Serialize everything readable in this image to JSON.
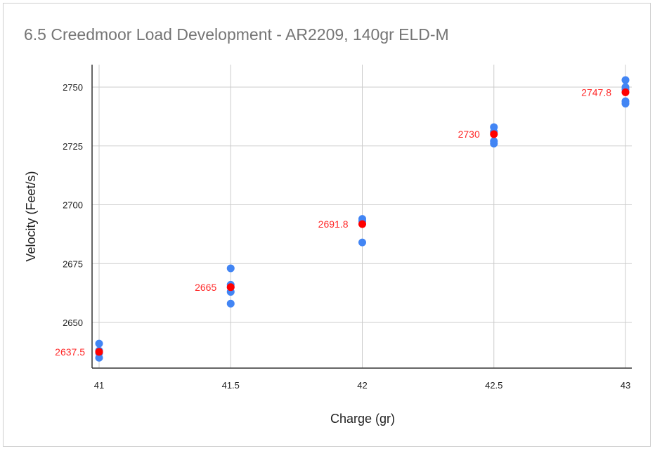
{
  "chart_data": {
    "type": "scatter",
    "title": "6.5 Creedmoor Load Development - AR2209, 140gr ELD-M",
    "xlabel": "Charge (gr)",
    "ylabel": "Velocity (Feet/s)",
    "xlim": [
      41,
      43
    ],
    "ylim": [
      2630,
      2760
    ],
    "xticks": [
      41,
      41.5,
      42,
      42.5,
      43
    ],
    "xtick_labels": [
      "41",
      "41.5",
      "42",
      "42.5",
      "43"
    ],
    "yticks": [
      2650,
      2675,
      2700,
      2725,
      2750
    ],
    "ytick_labels": [
      "2650",
      "2675",
      "2700",
      "2725",
      "2750"
    ],
    "grid": true,
    "legend": "none",
    "series": [
      {
        "color": "#4285f4",
        "points": [
          [
            41,
            2641
          ],
          [
            41,
            2638
          ],
          [
            41,
            2635
          ],
          [
            41,
            2637
          ],
          [
            41.5,
            2673
          ],
          [
            41.5,
            2666
          ],
          [
            41.5,
            2663
          ],
          [
            41.5,
            2665
          ],
          [
            41.5,
            2658
          ],
          [
            42,
            2694
          ],
          [
            42,
            2693
          ],
          [
            42,
            2684
          ],
          [
            42.5,
            2733
          ],
          [
            42.5,
            2731
          ],
          [
            42.5,
            2727
          ],
          [
            42.5,
            2726
          ],
          [
            43,
            2753
          ],
          [
            43,
            2750
          ],
          [
            43,
            2749
          ],
          [
            43,
            2744
          ],
          [
            43,
            2743
          ]
        ]
      },
      {
        "color": "#ff0000",
        "points": [
          [
            41,
            2637.5
          ],
          [
            41.5,
            2665
          ],
          [
            42,
            2691.8
          ],
          [
            42.5,
            2730
          ],
          [
            43,
            2747.8
          ]
        ],
        "labels": [
          "2637.5",
          "2665",
          "2691.8",
          "2730",
          "2747.8"
        ]
      }
    ]
  }
}
